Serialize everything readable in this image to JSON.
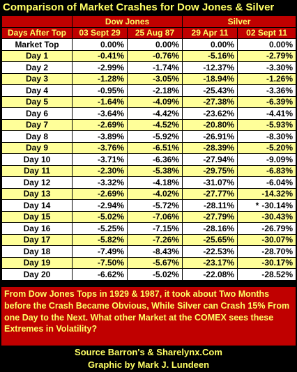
{
  "title": "Comparison of Market Crashes for Dow Jones & Silver",
  "chart_data": {
    "type": "table",
    "groups": [
      {
        "name": "Dow Jones",
        "columns": [
          "03 Sept 29",
          "25 Aug 87"
        ]
      },
      {
        "name": "Silver",
        "columns": [
          "29 Apr 11",
          "02 Sept 11"
        ]
      }
    ],
    "row_header": "Days After Top",
    "columns": [
      "03 Sept 29",
      "25 Aug 87",
      "29 Apr 11",
      "02 Sept 11"
    ],
    "rows": [
      {
        "label": "Market Top",
        "values": [
          "0.00%",
          "0.00%",
          "0.00%",
          "0.00%"
        ]
      },
      {
        "label": "Day 1",
        "values": [
          "-0.41%",
          "-0.76%",
          "-5.16%",
          "-2.79%"
        ]
      },
      {
        "label": "Day 2",
        "values": [
          "-2.99%",
          "-1.74%",
          "-12.37%",
          "-3.30%"
        ]
      },
      {
        "label": "Day 3",
        "values": [
          "-1.28%",
          "-3.05%",
          "-18.94%",
          "-1.26%"
        ]
      },
      {
        "label": "Day 4",
        "values": [
          "-0.95%",
          "-2.18%",
          "-25.43%",
          "-3.36%"
        ]
      },
      {
        "label": "Day 5",
        "values": [
          "-1.64%",
          "-4.09%",
          "-27.38%",
          "-6.39%"
        ]
      },
      {
        "label": "Day 6",
        "values": [
          "-3.64%",
          "-4.42%",
          "-23.62%",
          "-4.41%"
        ]
      },
      {
        "label": "Day 7",
        "values": [
          "-2.69%",
          "-4.52%",
          "-20.80%",
          "-5.93%"
        ]
      },
      {
        "label": "Day 8",
        "values": [
          "-3.89%",
          "-5.92%",
          "-26.91%",
          "-8.30%"
        ]
      },
      {
        "label": "Day 9",
        "values": [
          "-3.76%",
          "-6.51%",
          "-28.39%",
          "-5.20%"
        ]
      },
      {
        "label": "Day 10",
        "values": [
          "-3.71%",
          "-6.36%",
          "-27.94%",
          "-9.09%"
        ]
      },
      {
        "label": "Day 11",
        "values": [
          "-2.30%",
          "-5.38%",
          "-29.75%",
          "-6.83%"
        ]
      },
      {
        "label": "Day 12",
        "values": [
          "-3.32%",
          "-4.18%",
          "-31.07%",
          "-6.04%"
        ]
      },
      {
        "label": "Day 13",
        "values": [
          "-2.69%",
          "-4.02%",
          "-27.77%",
          "-14.32%"
        ]
      },
      {
        "label": "Day 14",
        "values": [
          "-2.94%",
          "-5.72%",
          "-28.11%",
          "-30.14%"
        ],
        "marks": [
          "",
          "",
          "",
          "*"
        ]
      },
      {
        "label": "Day 15",
        "values": [
          "-5.02%",
          "-7.06%",
          "-27.79%",
          "-30.43%"
        ]
      },
      {
        "label": "Day 16",
        "values": [
          "-5.25%",
          "-7.15%",
          "-28.16%",
          "-26.79%"
        ]
      },
      {
        "label": "Day 17",
        "values": [
          "-5.82%",
          "-7.26%",
          "-25.65%",
          "-30.07%"
        ]
      },
      {
        "label": "Day 18",
        "values": [
          "-7.49%",
          "-8.43%",
          "-22.53%",
          "-28.70%"
        ]
      },
      {
        "label": "Day 19",
        "values": [
          "-7.50%",
          "-5.67%",
          "-23.17%",
          "-30.17%"
        ]
      },
      {
        "label": "Day 20",
        "values": [
          "-6.62%",
          "-5.02%",
          "-22.08%",
          "-28.52%"
        ]
      }
    ]
  },
  "note": "From Dow Jones Tops in 1929 & 1987, it took about Two Months before the Crash Became Obvious, While Silver can Crash 15% From one Day to the Next.  What other Market at the COMEX sees these Extremes in Volatility?",
  "source": "Source Barron's & Sharelynx.Com",
  "credit": "Graphic by Mark J. Lundeen",
  "colors": {
    "background": "#000000",
    "header": "#c00000",
    "header_text": "#ffff66",
    "row_light": "#ffffff",
    "row_yellow": "#ffff99"
  }
}
